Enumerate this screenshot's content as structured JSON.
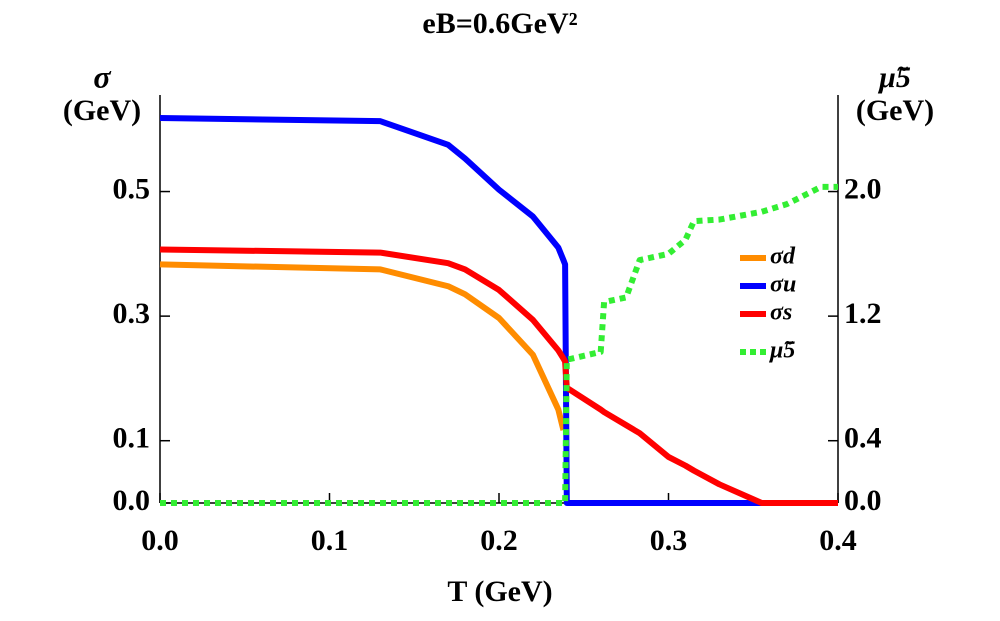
{
  "chart_data": {
    "type": "line",
    "title": "eB=0.6GeV²",
    "x_label": "T (GeV)",
    "y_label": [
      "σ",
      "(GeV)"
    ],
    "y2_label": [
      "μ̃5",
      "(GeV)"
    ],
    "x": [
      0,
      0.13,
      0.17,
      0.18,
      0.2,
      0.22,
      0.235,
      0.238,
      0.239,
      0.24,
      0.26,
      0.262,
      0.275,
      0.283,
      0.3,
      0.31,
      0.315,
      0.33,
      0.35,
      0.355,
      0.37,
      0.39,
      0.4
    ],
    "series": [
      {
        "name": "σd",
        "color": "#ff8c00",
        "values": [
          0.383,
          0.375,
          0.348,
          0.335,
          0.297,
          0.238,
          0.15,
          0.117,
          null,
          null,
          null,
          null,
          null,
          null,
          null,
          null,
          null,
          null,
          null,
          null,
          null,
          null,
          null
        ]
      },
      {
        "name": "σu",
        "color": "#0000ff",
        "values": [
          0.618,
          0.613,
          0.575,
          0.553,
          0.503,
          0.46,
          0.41,
          0.39,
          0.383,
          0,
          0,
          0,
          0,
          0,
          0,
          0,
          0,
          0,
          0,
          0,
          0,
          0,
          0
        ]
      },
      {
        "name": "σs",
        "color": "#ff0000",
        "values": [
          0.407,
          0.402,
          0.385,
          0.375,
          0.342,
          0.294,
          0.245,
          0.232,
          0.227,
          0.185,
          0.15,
          0.146,
          0.125,
          0.112,
          0.074,
          0.06,
          0.052,
          0.03,
          0.006,
          0,
          0,
          0,
          0
        ]
      },
      {
        "name": "μ̃5",
        "color": "#33ee33",
        "dashed": true,
        "axis": "y2",
        "values": [
          0,
          0,
          0,
          0,
          0,
          0,
          0,
          0,
          0,
          0.92,
          0.97,
          1.29,
          1.32,
          1.56,
          1.6,
          1.69,
          1.81,
          1.82,
          1.86,
          1.87,
          1.92,
          2.03,
          2.03
        ]
      }
    ],
    "xlim": [
      0,
      0.4
    ],
    "xticks": [
      {
        "value": 0,
        "label": "0.0"
      },
      0.1,
      0.2,
      0.3,
      0.4
    ],
    "ylim": [
      0,
      0.655
    ],
    "yticks": [
      {
        "value": 0,
        "label": "0.0"
      },
      0.1,
      0.3,
      0.5
    ],
    "y2lim": [
      0,
      2.62
    ],
    "y2ticks": [
      {
        "value": 0,
        "label": "0.0"
      },
      0.4,
      1.2,
      {
        "value": 2,
        "label": "2.0"
      }
    ]
  }
}
